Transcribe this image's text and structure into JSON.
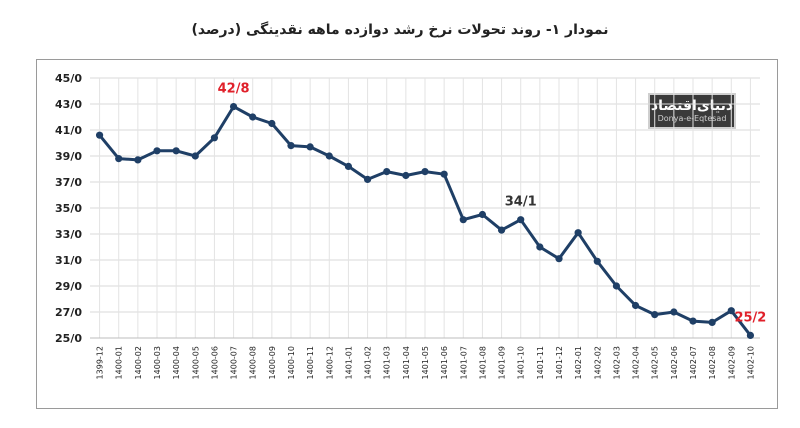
{
  "chart_data": {
    "type": "line",
    "title": "نمودار ۱- روند تحولات نرخ رشد دوازده ماهه نقدینگی (درصد)",
    "categories": [
      "1399-12",
      "1400-01",
      "1400-02",
      "1400-03",
      "1400-04",
      "1400-05",
      "1400-06",
      "1400-07",
      "1400-08",
      "1400-09",
      "1400-10",
      "1400-11",
      "1400-12",
      "1401-01",
      "1401-02",
      "1401-03",
      "1401-04",
      "1401-05",
      "1401-06",
      "1401-07",
      "1401-08",
      "1401-09",
      "1401-10",
      "1401-11",
      "1401-12",
      "1402-01",
      "1402-02",
      "1402-03",
      "1402-04",
      "1402-05",
      "1402-06",
      "1402-07",
      "1402-08",
      "1402-09",
      "1402-10"
    ],
    "series": [
      {
        "values": [
          40.6,
          38.8,
          38.7,
          39.4,
          39.4,
          39.0,
          40.4,
          42.8,
          42.0,
          41.5,
          39.8,
          39.7,
          39.0,
          38.2,
          37.2,
          37.8,
          37.5,
          37.8,
          37.6,
          34.1,
          34.5,
          33.3,
          34.1,
          32.0,
          31.1,
          33.1,
          30.9,
          29.0,
          27.5,
          26.8,
          27.0,
          26.3,
          26.2,
          27.1,
          25.2
        ]
      }
    ],
    "ylim": [
      25,
      45
    ],
    "yticks": [
      "25/0",
      "27/0",
      "29/0",
      "31/0",
      "33/0",
      "35/0",
      "37/0",
      "39/0",
      "41/0",
      "43/0",
      "45/0"
    ],
    "annotations": [
      {
        "index": 7,
        "text": "42/8",
        "color": "#e0202a"
      },
      {
        "index": 22,
        "text": "34/1",
        "color": "#333333"
      },
      {
        "index": 34,
        "text": "25/2",
        "color": "#e0202a"
      }
    ],
    "line_color": "#1f3f66",
    "grid": true,
    "legend": "none"
  },
  "watermark": {
    "line1": "دنیای‌اقتصاد",
    "line2": "Donya-e-Eqtesad"
  }
}
